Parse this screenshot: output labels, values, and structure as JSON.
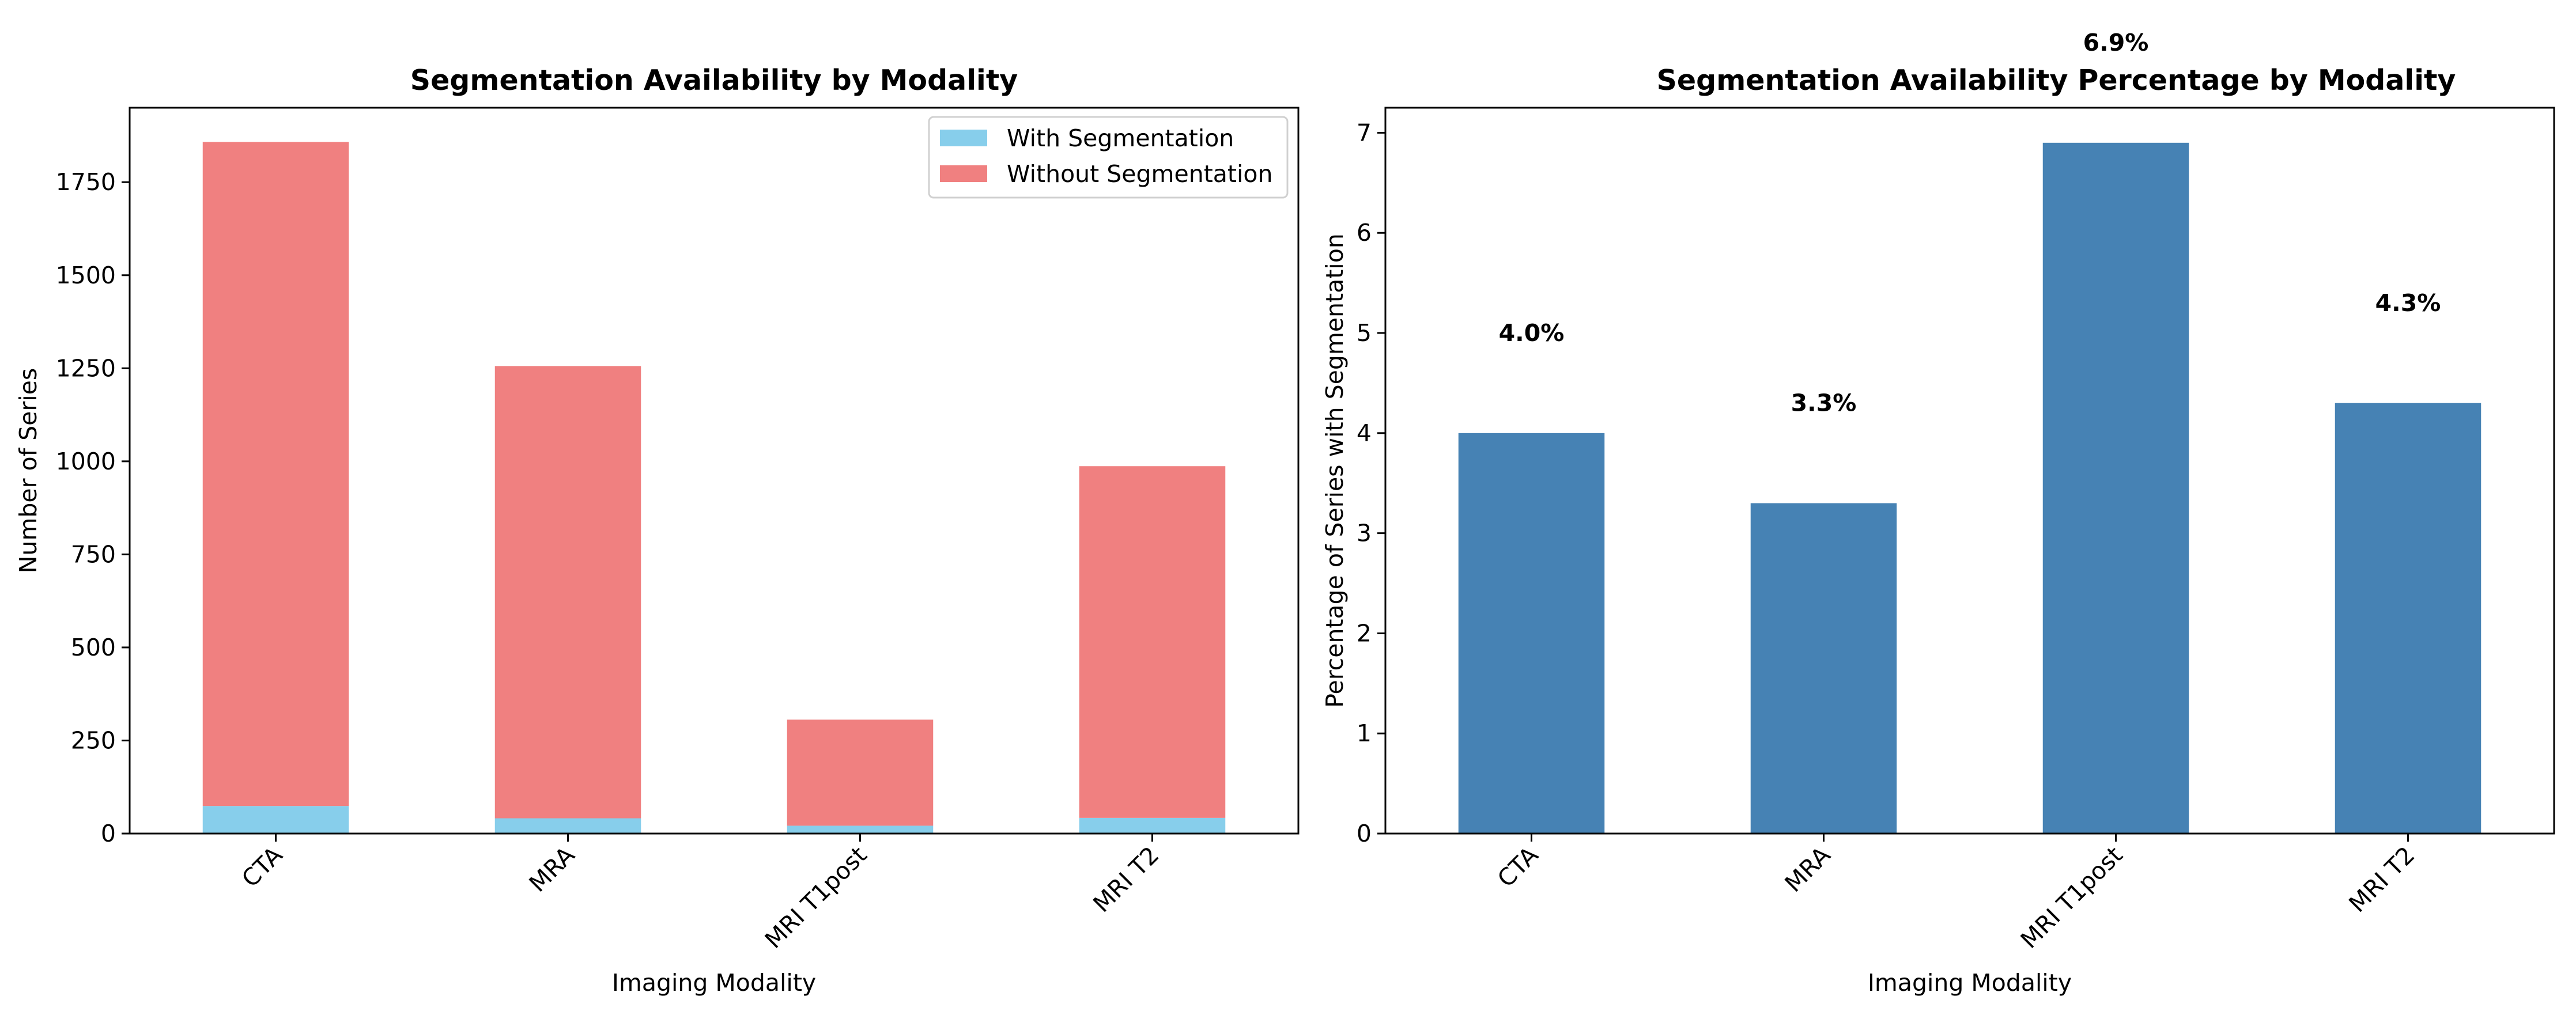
{
  "chart_data": [
    {
      "type": "bar",
      "stacked": true,
      "title": "Segmentation Availability by Modality",
      "xlabel": "Imaging Modality",
      "ylabel": "Number of Series",
      "categories": [
        "CTA",
        "MRA",
        "MRI T1post",
        "MRI T2"
      ],
      "series": [
        {
          "name": "With Segmentation",
          "color": "#87ceeb",
          "values": [
            74,
            41,
            21,
            42
          ]
        },
        {
          "name": "Without Segmentation",
          "color": "#f08080",
          "values": [
            1784,
            1215,
            285,
            945
          ]
        }
      ],
      "ylim": [
        0,
        1950
      ],
      "yticks": [
        0,
        250,
        500,
        750,
        1000,
        1250,
        1500,
        1750
      ],
      "legend": "top-right",
      "grid": false
    },
    {
      "type": "bar",
      "title": "Segmentation Availability Percentage by Modality",
      "xlabel": "Imaging Modality",
      "ylabel": "Percentage of Series with Segmentation",
      "categories": [
        "CTA",
        "MRA",
        "MRI T1post",
        "MRI T2"
      ],
      "series": [
        {
          "color": "#4682b4",
          "values": [
            4.0,
            3.3,
            6.9,
            4.3
          ]
        }
      ],
      "data_labels": [
        "4.0%",
        "3.3%",
        "6.9%",
        "4.3%"
      ],
      "ylim": [
        0,
        7.25
      ],
      "yticks": [
        0,
        1,
        2,
        3,
        4,
        5,
        6,
        7
      ],
      "legend": "none",
      "grid": false
    }
  ]
}
